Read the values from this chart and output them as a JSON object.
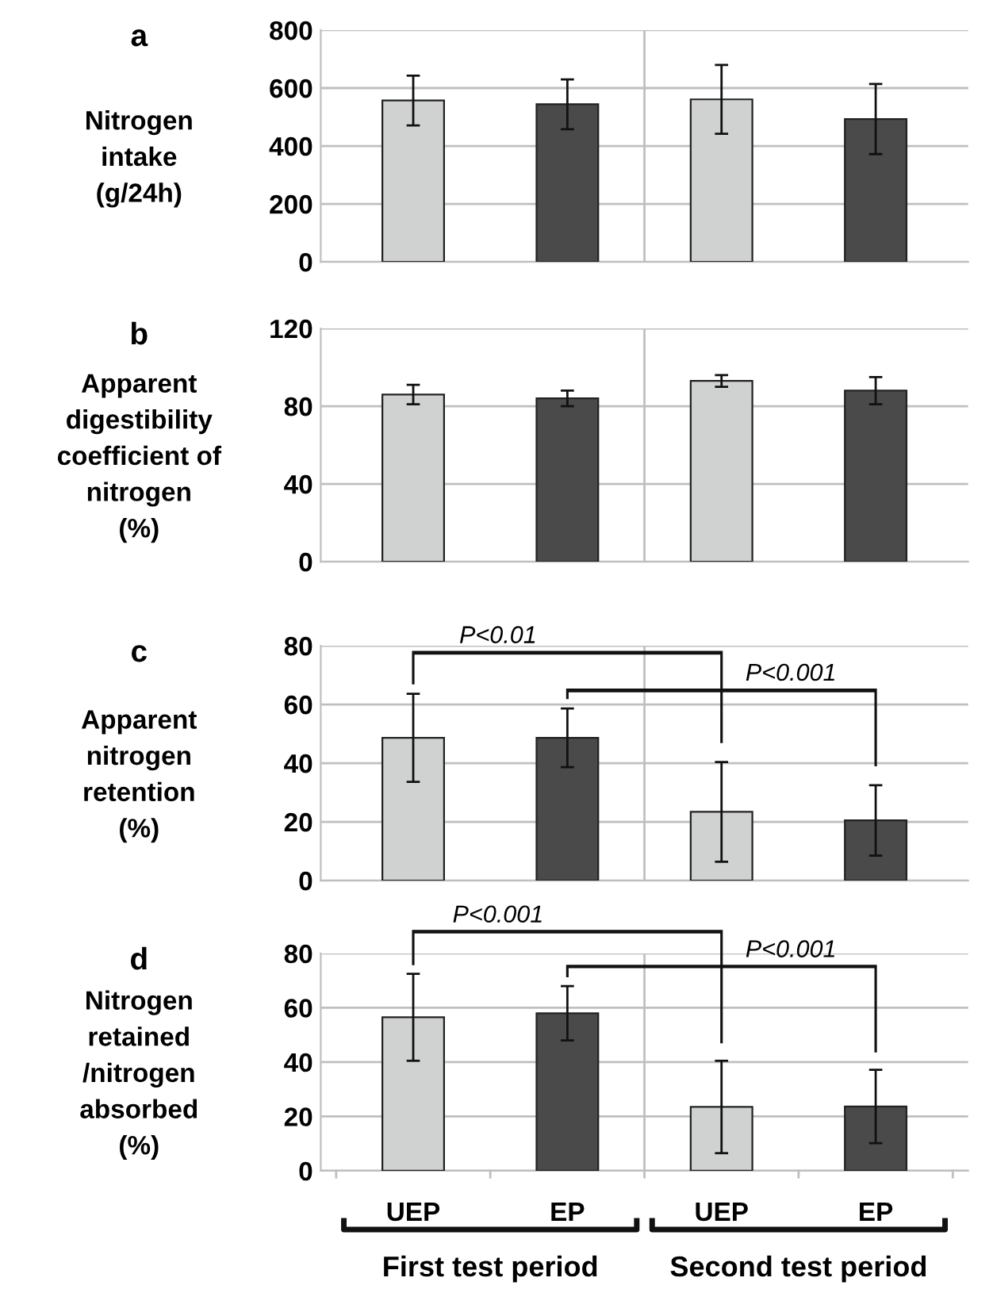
{
  "chart_data": [
    {
      "type": "bar",
      "title": "a",
      "ylabel": "Nitrogen\nintake\n(g/24h)",
      "categories": [
        null,
        null,
        null,
        null
      ],
      "values": [
        557,
        544,
        561,
        493
      ],
      "errors": [
        86,
        86,
        119,
        121
      ],
      "colors": [
        "#d0d2d1",
        "#4a4a4a",
        "#d0d2d1",
        "#4a4a4a"
      ],
      "ylim": [
        0,
        800
      ],
      "yticks": [
        0,
        200,
        400,
        600,
        800
      ],
      "grid": "y",
      "tick_labels": "y"
    },
    {
      "type": "bar",
      "title": "b",
      "ylabel": "Apparent\ndigestibility\ncoefficient of\nnitrogen\n(%)",
      "categories": [
        null,
        null,
        null,
        null
      ],
      "values": [
        86,
        84,
        93,
        88
      ],
      "errors": [
        5,
        4,
        3,
        7
      ],
      "colors": [
        "#d0d2d1",
        "#4a4a4a",
        "#d0d2d1",
        "#4a4a4a"
      ],
      "ylim": [
        0,
        120
      ],
      "yticks": [
        0,
        40,
        80,
        120
      ],
      "grid": "y",
      "tick_labels": "y"
    },
    {
      "type": "bar",
      "title": "c",
      "ylabel": "Apparent\nnitrogen\nretention\n(%)",
      "categories": [
        null,
        null,
        null,
        null
      ],
      "values": [
        48.6,
        48.6,
        23.4,
        20.5
      ],
      "errors": [
        15,
        10,
        17,
        12
      ],
      "colors": [
        "#d0d2d1",
        "#4a4a4a",
        "#d0d2d1",
        "#4a4a4a"
      ],
      "ylim": [
        0,
        80
      ],
      "yticks": [
        0,
        20,
        40,
        60,
        80
      ],
      "grid": "y",
      "tick_labels": "y",
      "annotations": [
        "P<0.01",
        "P<0.001"
      ]
    },
    {
      "type": "bar",
      "title": "d",
      "ylabel": "Nitrogen\nretained\n/nitrogen\nabsorbed\n(%)",
      "categories": [
        "UEP",
        "EP",
        "UEP",
        "EP"
      ],
      "values": [
        56.5,
        58,
        23.5,
        23.7
      ],
      "errors": [
        16,
        10,
        17,
        13.5
      ],
      "colors": [
        "#d0d2d1",
        "#4a4a4a",
        "#d0d2d1",
        "#4a4a4a"
      ],
      "ylim": [
        0,
        80
      ],
      "yticks": [
        0,
        20,
        40,
        60,
        80
      ],
      "grid": "y",
      "annotations": [
        "P<0.001",
        "P<0.001",
        "First test period",
        "Second test period"
      ]
    }
  ]
}
